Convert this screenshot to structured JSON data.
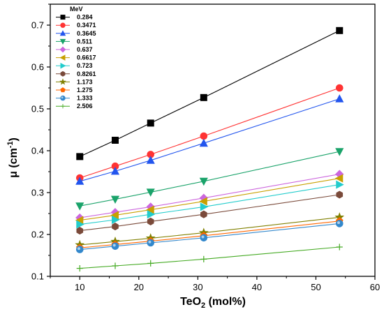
{
  "chart_data": {
    "type": "scatter",
    "title": "",
    "xlabel": {
      "main": "TeO",
      "sub": "2",
      "rest": " (mol%)"
    },
    "ylabel": {
      "main": "μ (cm",
      "sup": "-1",
      "rest": ")"
    },
    "xlim": [
      5,
      60
    ],
    "ylim": [
      0.1,
      0.75
    ],
    "xticks": [
      "10",
      "20",
      "30",
      "40",
      "50",
      "60"
    ],
    "yticks": [
      "0.1",
      "0.2",
      "0.3",
      "0.4",
      "0.5",
      "0.6",
      "0.7"
    ],
    "grid": false,
    "legend": {
      "title": "MeV",
      "position": "top-left"
    },
    "x": [
      10,
      16,
      22,
      31,
      54
    ],
    "series": [
      {
        "name": "0.284",
        "color": "#000000",
        "marker": "square",
        "values": [
          0.386,
          0.425,
          0.466,
          0.527,
          0.687
        ]
      },
      {
        "name": "0.3471",
        "color": "#ff3333",
        "marker": "circle",
        "values": [
          0.335,
          0.363,
          0.391,
          0.435,
          0.55
        ]
      },
      {
        "name": "0.3645",
        "color": "#2255ee",
        "marker": "triangle-up",
        "values": [
          0.327,
          0.351,
          0.377,
          0.418,
          0.524
        ]
      },
      {
        "name": "0.511",
        "color": "#1aa36a",
        "marker": "triangle-down",
        "values": [
          0.268,
          0.284,
          0.301,
          0.327,
          0.398
        ]
      },
      {
        "name": "0.637",
        "color": "#cc66dd",
        "marker": "diamond",
        "values": [
          0.24,
          0.253,
          0.266,
          0.287,
          0.344
        ]
      },
      {
        "name": "0.6617",
        "color": "#c8a000",
        "marker": "triangle-left",
        "values": [
          0.234,
          0.246,
          0.259,
          0.279,
          0.334
        ]
      },
      {
        "name": "0.723",
        "color": "#22cccc",
        "marker": "triangle-right",
        "values": [
          0.224,
          0.235,
          0.248,
          0.266,
          0.319
        ]
      },
      {
        "name": "0.8261",
        "color": "#7a4a3a",
        "marker": "hexagon",
        "values": [
          0.209,
          0.219,
          0.231,
          0.248,
          0.295
        ]
      },
      {
        "name": "1.173",
        "color": "#808000",
        "marker": "star",
        "values": [
          0.175,
          0.183,
          0.191,
          0.204,
          0.241
        ]
      },
      {
        "name": "1.275",
        "color": "#ff6600",
        "marker": "pentagon",
        "values": [
          0.168,
          0.176,
          0.184,
          0.197,
          0.232
        ]
      },
      {
        "name": "1.333",
        "color": "#3388cc",
        "marker": "sphere",
        "values": [
          0.164,
          0.172,
          0.18,
          0.192,
          0.226
        ]
      },
      {
        "name": "2.506",
        "color": "#44aa22",
        "marker": "plus",
        "values": [
          0.119,
          0.125,
          0.131,
          0.141,
          0.17
        ]
      }
    ]
  }
}
